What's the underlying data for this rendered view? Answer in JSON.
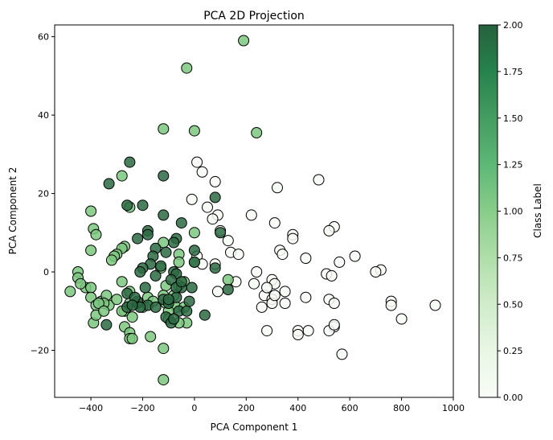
{
  "chart_data": {
    "type": "scatter",
    "title": "PCA 2D Projection",
    "xlabel": "PCA Component 1",
    "ylabel": "PCA Component 2",
    "xlim": [
      -540,
      1000
    ],
    "ylim": [
      -32,
      63
    ],
    "x_ticks": [
      -400,
      -200,
      0,
      200,
      400,
      600,
      800,
      1000
    ],
    "x_tick_labels": [
      "−400",
      "−200",
      "0",
      "200",
      "400",
      "600",
      "800",
      "1000"
    ],
    "y_ticks": [
      -20,
      0,
      20,
      40,
      60
    ],
    "y_tick_labels": [
      "−20",
      "0",
      "20",
      "40",
      "60"
    ],
    "grid": false,
    "colormap": "Greens",
    "marker_edge_color": "#000000",
    "colorbar": {
      "label": "Class Label",
      "range": [
        0,
        2
      ],
      "ticks": [
        0,
        0.25,
        0.5,
        0.75,
        1.0,
        1.25,
        1.5,
        1.75,
        2.0
      ],
      "tick_labels": [
        "0.00",
        "0.25",
        "0.50",
        "0.75",
        "1.00",
        "1.25",
        "1.50",
        "1.75",
        "2.00"
      ],
      "gradient_colors": [
        "#f7fcf5",
        "#e5f5e0",
        "#c7e9c0",
        "#a1d99b",
        "#74c476",
        "#41ab5d",
        "#238b45",
        "#006d2c",
        "#00441b"
      ]
    },
    "series": [
      {
        "class": 0,
        "color": "#f7fcf5",
        "points": [
          [
            10,
            28
          ],
          [
            30,
            25.5
          ],
          [
            80,
            23
          ],
          [
            -10,
            18.5
          ],
          [
            90,
            14.5
          ],
          [
            50,
            16.5
          ],
          [
            70,
            13.5
          ],
          [
            100,
            10.5
          ],
          [
            220,
            14.5
          ],
          [
            320,
            21.5
          ],
          [
            480,
            23.5
          ],
          [
            310,
            12.5
          ],
          [
            380,
            9.5
          ],
          [
            380,
            8.5
          ],
          [
            540,
            11.5
          ],
          [
            520,
            10.5
          ],
          [
            330,
            5.5
          ],
          [
            340,
            4.5
          ],
          [
            430,
            3.5
          ],
          [
            560,
            2.5
          ],
          [
            620,
            4
          ],
          [
            720,
            0.5
          ],
          [
            700,
            0
          ],
          [
            510,
            -0.5
          ],
          [
            530,
            -1
          ],
          [
            240,
            0
          ],
          [
            130,
            8
          ],
          [
            140,
            5
          ],
          [
            170,
            4.5
          ],
          [
            10,
            4
          ],
          [
            30,
            2
          ],
          [
            80,
            2
          ],
          [
            160,
            -2.5
          ],
          [
            90,
            -5
          ],
          [
            230,
            -3
          ],
          [
            300,
            -2
          ],
          [
            310,
            -3
          ],
          [
            270,
            -6
          ],
          [
            280,
            -4
          ],
          [
            350,
            -5
          ],
          [
            300,
            -7
          ],
          [
            300,
            -8
          ],
          [
            260,
            -9
          ],
          [
            350,
            -8
          ],
          [
            430,
            -6.5
          ],
          [
            520,
            -7
          ],
          [
            540,
            -8
          ],
          [
            760,
            -7.5
          ],
          [
            760,
            -8.5
          ],
          [
            930,
            -8.5
          ],
          [
            800,
            -12
          ],
          [
            540,
            -14
          ],
          [
            520,
            -15
          ],
          [
            440,
            -15
          ],
          [
            400,
            -15
          ],
          [
            400,
            -16
          ],
          [
            280,
            -15
          ],
          [
            570,
            -21
          ],
          [
            540,
            -13.5
          ],
          [
            310,
            -6
          ]
        ]
      },
      {
        "class": 1,
        "color": "#7bc77f",
        "points": [
          [
            190,
            59
          ],
          [
            -30,
            52
          ],
          [
            -120,
            36.5
          ],
          [
            0,
            36
          ],
          [
            240,
            35.5
          ],
          [
            -280,
            24.5
          ],
          [
            -250,
            16.5
          ],
          [
            -400,
            15.5
          ],
          [
            -390,
            11
          ],
          [
            -380,
            9.5
          ],
          [
            0,
            10
          ],
          [
            -270,
            6.5
          ],
          [
            -280,
            6
          ],
          [
            -300,
            4.5
          ],
          [
            -310,
            4
          ],
          [
            -320,
            3
          ],
          [
            -400,
            5.5
          ],
          [
            -120,
            7.5
          ],
          [
            -60,
            4.5
          ],
          [
            -60,
            2.5
          ],
          [
            0,
            2.5
          ],
          [
            -130,
            1
          ],
          [
            -450,
            0
          ],
          [
            -450,
            -1.5
          ],
          [
            -420,
            -4
          ],
          [
            -440,
            -3
          ],
          [
            -400,
            -4
          ],
          [
            -480,
            -5
          ],
          [
            -400,
            -6.5
          ],
          [
            -360,
            -7.5
          ],
          [
            -380,
            -8.5
          ],
          [
            -330,
            -8.5
          ],
          [
            -340,
            -6
          ],
          [
            -350,
            -8
          ],
          [
            -370,
            -8
          ],
          [
            -300,
            -7
          ],
          [
            -250,
            -8
          ],
          [
            -270,
            -10
          ],
          [
            -280,
            -10
          ],
          [
            -240,
            -11.5
          ],
          [
            -280,
            -2.5
          ],
          [
            -250,
            -5
          ],
          [
            -180,
            -6.5
          ],
          [
            -110,
            -8
          ],
          [
            -110,
            -3.5
          ],
          [
            -40,
            -2.5
          ],
          [
            -60,
            -3.5
          ],
          [
            -80,
            -6
          ],
          [
            -70,
            -9
          ],
          [
            -40,
            -9
          ],
          [
            -30,
            -13
          ],
          [
            -60,
            -13
          ],
          [
            -100,
            -10
          ],
          [
            -100,
            -12
          ],
          [
            -120,
            -6
          ],
          [
            -170,
            -16.5
          ],
          [
            -270,
            -14
          ],
          [
            -250,
            -15.5
          ],
          [
            -250,
            -17
          ],
          [
            -240,
            -17
          ],
          [
            -120,
            -19.5
          ],
          [
            -120,
            -27.5
          ],
          [
            130,
            -2
          ],
          [
            -390,
            -13
          ],
          [
            -380,
            -11
          ],
          [
            -350,
            -10
          ],
          [
            -200,
            -9
          ],
          [
            -160,
            -7.5
          ]
        ]
      },
      {
        "class": 2,
        "color": "#2c6a43",
        "points": [
          [
            -250,
            28
          ],
          [
            -120,
            24.5
          ],
          [
            -330,
            22.5
          ],
          [
            -260,
            17
          ],
          [
            -200,
            17
          ],
          [
            -120,
            14.5
          ],
          [
            80,
            19
          ],
          [
            -50,
            12.5
          ],
          [
            -180,
            10.5
          ],
          [
            -180,
            9.5
          ],
          [
            -220,
            8.5
          ],
          [
            -70,
            8.5
          ],
          [
            -80,
            7.5
          ],
          [
            -150,
            6
          ],
          [
            -110,
            5
          ],
          [
            -160,
            4
          ],
          [
            0,
            5.5
          ],
          [
            100,
            10
          ],
          [
            -170,
            2
          ],
          [
            -200,
            1
          ],
          [
            -210,
            0
          ],
          [
            -130,
            1.5
          ],
          [
            -80,
            0
          ],
          [
            -70,
            -0.5
          ],
          [
            0,
            2.5
          ],
          [
            80,
            1
          ],
          [
            -190,
            -4
          ],
          [
            -150,
            -1
          ],
          [
            -90,
            -2
          ],
          [
            -50,
            -4
          ],
          [
            -10,
            -4
          ],
          [
            -220,
            -8
          ],
          [
            -220,
            -7.5
          ],
          [
            -180,
            -8.5
          ],
          [
            -210,
            -9
          ],
          [
            -260,
            -9
          ],
          [
            -260,
            -5.5
          ],
          [
            -230,
            -6.5
          ],
          [
            -150,
            -9
          ],
          [
            -120,
            -7
          ],
          [
            -100,
            -8
          ],
          [
            -110,
            -11.5
          ],
          [
            -90,
            -13
          ],
          [
            -60,
            -10
          ],
          [
            -30,
            -10
          ],
          [
            -70,
            -6.5
          ],
          [
            -70,
            -4
          ],
          [
            -50,
            -2.5
          ],
          [
            40,
            -11
          ],
          [
            -340,
            -13.5
          ],
          [
            -240,
            -8.5
          ],
          [
            -80,
            -12
          ],
          [
            130,
            -4.5
          ],
          [
            -100,
            -7
          ],
          [
            -20,
            -7.5
          ]
        ]
      }
    ]
  }
}
